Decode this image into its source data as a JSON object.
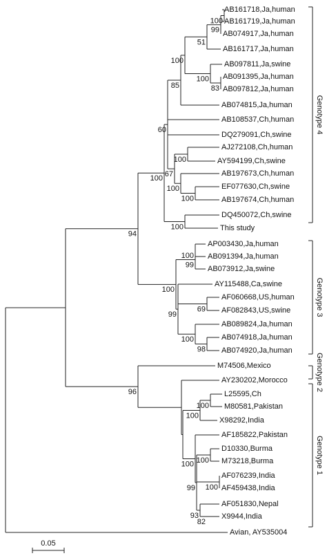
{
  "leaves": [
    "AB161718,Ja,human",
    "AB161719,Ja,human",
    "AB074917,Ja,human",
    "AB161717,Ja,human",
    "AB097811,Ja,swine",
    "AB091395,Ja,human",
    "AB097812,Ja,human",
    "AB074815,Ja,human",
    "AB108537,Ch,human",
    "DQ279091,Ch,swine",
    "AJ272108,Ch,human",
    "AY594199,Ch,swine",
    "AB197673,Ch,human",
    "EF077630,Ch,swine",
    "AB197674,Ch,human",
    "DQ450072,Ch,swine",
    "This study",
    "AP003430,Ja,human",
    "AB091394,Ja,human",
    "AB073912,Ja,swine",
    "AY115488,Ca,swine",
    "AF060668,US,human",
    "AF082843,US,swine",
    "AB089824,Ja,human",
    "AB074918,Ja,human",
    "AB074920,Ja,human",
    "M74506,Mexico",
    "AY230202,Morocco",
    "L25595,Ch",
    "M80581,Pakistan",
    "X98292,India",
    "AF185822,Pakistan",
    "D10330,Burma",
    "M73218,Burma",
    "AF076239,India",
    "AF459438,India",
    "AF051830,Nepal",
    "X9944,India",
    "Avian, AY535004"
  ],
  "bootstraps": [
    100,
    99,
    51,
    100,
    83,
    100,
    85,
    60,
    67,
    100,
    100,
    100,
    100,
    100,
    100,
    99,
    100,
    69,
    99,
    100,
    98,
    100,
    100,
    100,
    100,
    99,
    93,
    82,
    94,
    96,
    100
  ],
  "genotypes": [
    "Genotype 4",
    "Genotype 3",
    "Genotype 2",
    "Genotype 1"
  ],
  "scale": "0.05"
}
